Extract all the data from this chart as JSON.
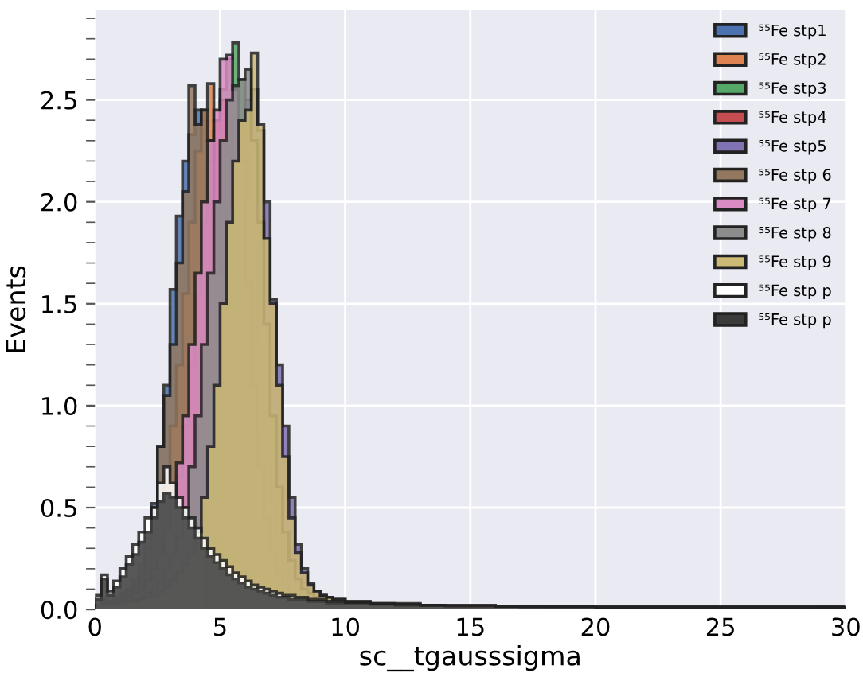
{
  "chart_data": {
    "type": "histogram",
    "xlabel": "sc__tgausssigma",
    "ylabel": "Events",
    "bins": [
      0,
      0.25,
      0.5,
      0.75,
      1,
      1.25,
      1.5,
      1.75,
      2,
      2.25,
      2.5,
      2.75,
      3,
      3.25,
      3.5,
      3.75,
      4,
      4.25,
      4.5,
      4.75,
      5,
      5.25,
      5.5,
      5.75,
      6,
      6.25,
      6.5,
      6.75,
      7,
      7.25,
      7.5,
      7.75,
      8,
      8.25,
      8.5,
      8.75,
      9,
      9.25,
      9.5,
      9.75,
      10,
      11,
      12,
      13,
      14,
      15,
      16,
      17,
      18,
      19,
      20,
      21,
      22,
      23,
      24,
      25,
      26,
      27,
      28,
      29,
      30
    ],
    "series": [
      {
        "name": "⁵⁵Fe stp1",
        "color": "#4c72b0",
        "values": [
          0.02,
          0.05,
          0.04,
          0.06,
          0.08,
          0.1,
          0.15,
          0.22,
          0.35,
          0.52,
          0.8,
          1.1,
          1.57,
          1.93,
          2.2,
          2.33,
          2.45,
          2.4,
          2.2,
          1.9,
          1.5,
          1.1,
          0.75,
          0.5,
          0.32,
          0.2,
          0.14,
          0.1,
          0.08,
          0.07,
          0.06,
          0.05,
          0.05,
          0.04,
          0.04,
          0.04,
          0.03,
          0.03,
          0.03,
          0.03,
          0.03,
          0.02,
          0.02,
          0.02,
          0.015,
          0.015,
          0.01,
          0.01,
          0.01,
          0.01,
          0.01,
          0.01,
          0.01,
          0.01,
          0.01,
          0.01,
          0.01,
          0.01,
          0.01,
          0.01
        ]
      },
      {
        "name": "⁵⁵Fe stp2",
        "color": "#dd8452",
        "values": [
          0.02,
          0.03,
          0.03,
          0.04,
          0.05,
          0.07,
          0.09,
          0.13,
          0.2,
          0.3,
          0.45,
          0.65,
          0.9,
          1.2,
          1.55,
          1.9,
          2.25,
          2.45,
          2.58,
          2.4,
          2.1,
          1.7,
          1.25,
          0.85,
          0.55,
          0.35,
          0.22,
          0.14,
          0.1,
          0.08,
          0.06,
          0.05,
          0.05,
          0.04,
          0.04,
          0.04,
          0.03,
          0.03,
          0.03,
          0.03,
          0.03,
          0.02,
          0.02,
          0.02,
          0.015,
          0.015,
          0.01,
          0.01,
          0.01,
          0.01,
          0.01,
          0.01,
          0.01,
          0.01,
          0.01,
          0.01,
          0.01,
          0.01,
          0.01,
          0.01
        ]
      },
      {
        "name": "⁵⁵Fe stp3",
        "color": "#55a868",
        "values": [
          0.02,
          0.03,
          0.03,
          0.03,
          0.04,
          0.05,
          0.06,
          0.08,
          0.1,
          0.14,
          0.2,
          0.28,
          0.4,
          0.55,
          0.75,
          1.0,
          1.35,
          1.7,
          2.05,
          2.35,
          2.55,
          2.7,
          2.78,
          2.6,
          2.25,
          1.8,
          1.3,
          0.85,
          0.55,
          0.35,
          0.22,
          0.14,
          0.1,
          0.07,
          0.06,
          0.05,
          0.04,
          0.04,
          0.03,
          0.03,
          0.03,
          0.02,
          0.02,
          0.02,
          0.015,
          0.015,
          0.01,
          0.01,
          0.01,
          0.01,
          0.01,
          0.01,
          0.01,
          0.01,
          0.01,
          0.01,
          0.01,
          0.01,
          0.01,
          0.01
        ]
      },
      {
        "name": "⁵⁵Fe stp4",
        "color": "#c44e52",
        "values": [
          0.02,
          0.03,
          0.03,
          0.04,
          0.05,
          0.06,
          0.07,
          0.09,
          0.12,
          0.17,
          0.24,
          0.34,
          0.48,
          0.66,
          0.9,
          1.2,
          1.55,
          1.9,
          2.2,
          2.4,
          2.5,
          2.4,
          2.15,
          1.8,
          1.35,
          0.95,
          0.62,
          0.4,
          0.25,
          0.16,
          0.11,
          0.08,
          0.06,
          0.05,
          0.05,
          0.04,
          0.04,
          0.03,
          0.03,
          0.03,
          0.03,
          0.02,
          0.02,
          0.02,
          0.015,
          0.015,
          0.01,
          0.01,
          0.01,
          0.01,
          0.01,
          0.01,
          0.01,
          0.01,
          0.01,
          0.01,
          0.01,
          0.01,
          0.01,
          0.01
        ]
      },
      {
        "name": "⁵⁵Fe stp5",
        "color": "#8172b3",
        "values": [
          0.02,
          0.02,
          0.03,
          0.03,
          0.03,
          0.04,
          0.04,
          0.05,
          0.06,
          0.08,
          0.1,
          0.13,
          0.17,
          0.22,
          0.3,
          0.4,
          0.55,
          0.75,
          1.0,
          1.3,
          1.65,
          1.95,
          2.2,
          2.4,
          2.5,
          2.55,
          2.35,
          2.0,
          1.52,
          1.2,
          0.9,
          0.55,
          0.32,
          0.2,
          0.13,
          0.09,
          0.07,
          0.06,
          0.05,
          0.05,
          0.03,
          0.02,
          0.02,
          0.02,
          0.015,
          0.015,
          0.01,
          0.01,
          0.01,
          0.01,
          0.01,
          0.01,
          0.01,
          0.01,
          0.01,
          0.01,
          0.01,
          0.01,
          0.01,
          0.01
        ]
      },
      {
        "name": "⁵⁵Fe stp 6",
        "color": "#937860",
        "values": [
          0.02,
          0.04,
          0.04,
          0.05,
          0.07,
          0.09,
          0.12,
          0.18,
          0.3,
          0.5,
          0.8,
          1.05,
          1.3,
          1.7,
          2.05,
          2.57,
          2.38,
          2.45,
          2.3,
          2.0,
          1.65,
          1.25,
          0.85,
          0.55,
          0.35,
          0.22,
          0.15,
          0.1,
          0.08,
          0.07,
          0.06,
          0.05,
          0.05,
          0.04,
          0.04,
          0.04,
          0.03,
          0.03,
          0.03,
          0.03,
          0.03,
          0.02,
          0.02,
          0.02,
          0.015,
          0.015,
          0.01,
          0.01,
          0.01,
          0.01,
          0.01,
          0.01,
          0.01,
          0.01,
          0.01,
          0.01,
          0.01,
          0.01,
          0.01,
          0.01
        ]
      },
      {
        "name": "⁵⁵Fe stp 7",
        "color": "#da8bc3",
        "values": [
          0.02,
          0.03,
          0.03,
          0.04,
          0.05,
          0.06,
          0.08,
          0.1,
          0.14,
          0.2,
          0.28,
          0.4,
          0.55,
          0.72,
          0.95,
          1.3,
          1.65,
          2.0,
          2.3,
          2.45,
          2.7,
          2.72,
          2.55,
          2.2,
          1.6,
          1.1,
          0.7,
          0.45,
          0.28,
          0.18,
          0.12,
          0.09,
          0.07,
          0.06,
          0.05,
          0.05,
          0.04,
          0.04,
          0.03,
          0.03,
          0.03,
          0.02,
          0.02,
          0.02,
          0.015,
          0.015,
          0.01,
          0.01,
          0.01,
          0.01,
          0.01,
          0.01,
          0.01,
          0.01,
          0.01,
          0.01,
          0.01,
          0.01,
          0.01,
          0.01
        ]
      },
      {
        "name": "⁵⁵Fe stp 8",
        "color": "#8c8c8c",
        "values": [
          0.02,
          0.03,
          0.03,
          0.03,
          0.04,
          0.04,
          0.05,
          0.06,
          0.08,
          0.1,
          0.14,
          0.2,
          0.27,
          0.36,
          0.5,
          0.7,
          0.95,
          1.3,
          1.65,
          2.0,
          2.3,
          2.5,
          2.57,
          2.6,
          2.65,
          2.3,
          1.9,
          1.4,
          0.95,
          0.6,
          0.38,
          0.24,
          0.15,
          0.1,
          0.08,
          0.06,
          0.05,
          0.05,
          0.04,
          0.04,
          0.03,
          0.02,
          0.02,
          0.02,
          0.015,
          0.015,
          0.01,
          0.01,
          0.01,
          0.01,
          0.01,
          0.01,
          0.01,
          0.01,
          0.01,
          0.01,
          0.01,
          0.01,
          0.01,
          0.01
        ]
      },
      {
        "name": "⁵⁵Fe stp 9",
        "color": "#ccb974",
        "values": [
          0.02,
          0.02,
          0.03,
          0.03,
          0.03,
          0.04,
          0.04,
          0.05,
          0.06,
          0.07,
          0.09,
          0.11,
          0.14,
          0.18,
          0.22,
          0.28,
          0.38,
          0.55,
          0.8,
          1.1,
          1.5,
          1.9,
          2.2,
          2.4,
          2.45,
          2.73,
          2.38,
          1.82,
          1.5,
          1.1,
          0.75,
          0.45,
          0.28,
          0.18,
          0.12,
          0.09,
          0.07,
          0.06,
          0.05,
          0.05,
          0.04,
          0.03,
          0.03,
          0.02,
          0.02,
          0.02,
          0.015,
          0.015,
          0.01,
          0.01,
          0.01,
          0.01,
          0.01,
          0.01,
          0.01,
          0.01,
          0.01,
          0.01,
          0.01,
          0.01
        ]
      },
      {
        "name": "⁵⁵Fe stp p",
        "color": "#ffffff",
        "values": [
          0.07,
          0.17,
          0.09,
          0.14,
          0.2,
          0.26,
          0.32,
          0.38,
          0.45,
          0.5,
          0.62,
          0.7,
          0.62,
          0.55,
          0.5,
          0.45,
          0.4,
          0.35,
          0.3,
          0.27,
          0.24,
          0.21,
          0.18,
          0.16,
          0.14,
          0.12,
          0.11,
          0.1,
          0.09,
          0.08,
          0.07,
          0.07,
          0.06,
          0.06,
          0.05,
          0.05,
          0.05,
          0.04,
          0.04,
          0.04,
          0.035,
          0.03,
          0.025,
          0.02,
          0.02,
          0.02,
          0.015,
          0.015,
          0.015,
          0.015,
          0.01,
          0.01,
          0.01,
          0.01,
          0.01,
          0.01,
          0.01,
          0.01,
          0.01,
          0.01
        ]
      },
      {
        "name": "⁵⁵Fe stp p",
        "color": "#3b3b3b",
        "values": [
          0.05,
          0.15,
          0.07,
          0.11,
          0.16,
          0.22,
          0.27,
          0.33,
          0.38,
          0.45,
          0.53,
          0.57,
          0.55,
          0.5,
          0.45,
          0.4,
          0.35,
          0.3,
          0.26,
          0.23,
          0.2,
          0.17,
          0.15,
          0.13,
          0.11,
          0.1,
          0.09,
          0.08,
          0.07,
          0.06,
          0.06,
          0.05,
          0.05,
          0.05,
          0.04,
          0.04,
          0.04,
          0.03,
          0.03,
          0.03,
          0.03,
          0.025,
          0.02,
          0.02,
          0.015,
          0.015,
          0.015,
          0.01,
          0.01,
          0.01,
          0.01,
          0.01,
          0.01,
          0.01,
          0.01,
          0.01,
          0.01,
          0.01,
          0.01,
          0.01
        ]
      }
    ],
    "xlim": [
      0,
      30
    ],
    "xticks": [
      0,
      5,
      10,
      15,
      20,
      25,
      30
    ],
    "ylim": [
      0,
      2.94
    ],
    "yticks": [
      {
        "value": 0,
        "label": "0.0"
      },
      {
        "value": 0.1,
        "label": null
      },
      {
        "value": 0.2,
        "label": null
      },
      {
        "value": 0.3,
        "label": null
      },
      {
        "value": 0.4,
        "label": null
      },
      {
        "value": 0.5,
        "label": "0.5"
      },
      {
        "value": 0.6,
        "label": null
      },
      {
        "value": 0.7,
        "label": null
      },
      {
        "value": 0.8,
        "label": null
      },
      {
        "value": 0.9,
        "label": null
      },
      {
        "value": 1,
        "label": "1.0"
      },
      {
        "value": 1.1,
        "label": null
      },
      {
        "value": 1.2,
        "label": null
      },
      {
        "value": 1.3,
        "label": null
      },
      {
        "value": 1.4,
        "label": null
      },
      {
        "value": 1.5,
        "label": "1.5"
      },
      {
        "value": 1.6,
        "label": null
      },
      {
        "value": 1.7,
        "label": null
      },
      {
        "value": 1.8,
        "label": null
      },
      {
        "value": 1.9,
        "label": null
      },
      {
        "value": 2,
        "label": "2.0"
      },
      {
        "value": 2.1,
        "label": null
      },
      {
        "value": 2.2,
        "label": null
      },
      {
        "value": 2.3,
        "label": null
      },
      {
        "value": 2.4,
        "label": null
      },
      {
        "value": 2.5,
        "label": "2.5"
      },
      {
        "value": 2.6,
        "label": null
      },
      {
        "value": 2.7,
        "label": null
      },
      {
        "value": 2.8,
        "label": null
      },
      {
        "value": 2.9,
        "label": null
      }
    ],
    "grid": true,
    "legend": "top right"
  }
}
